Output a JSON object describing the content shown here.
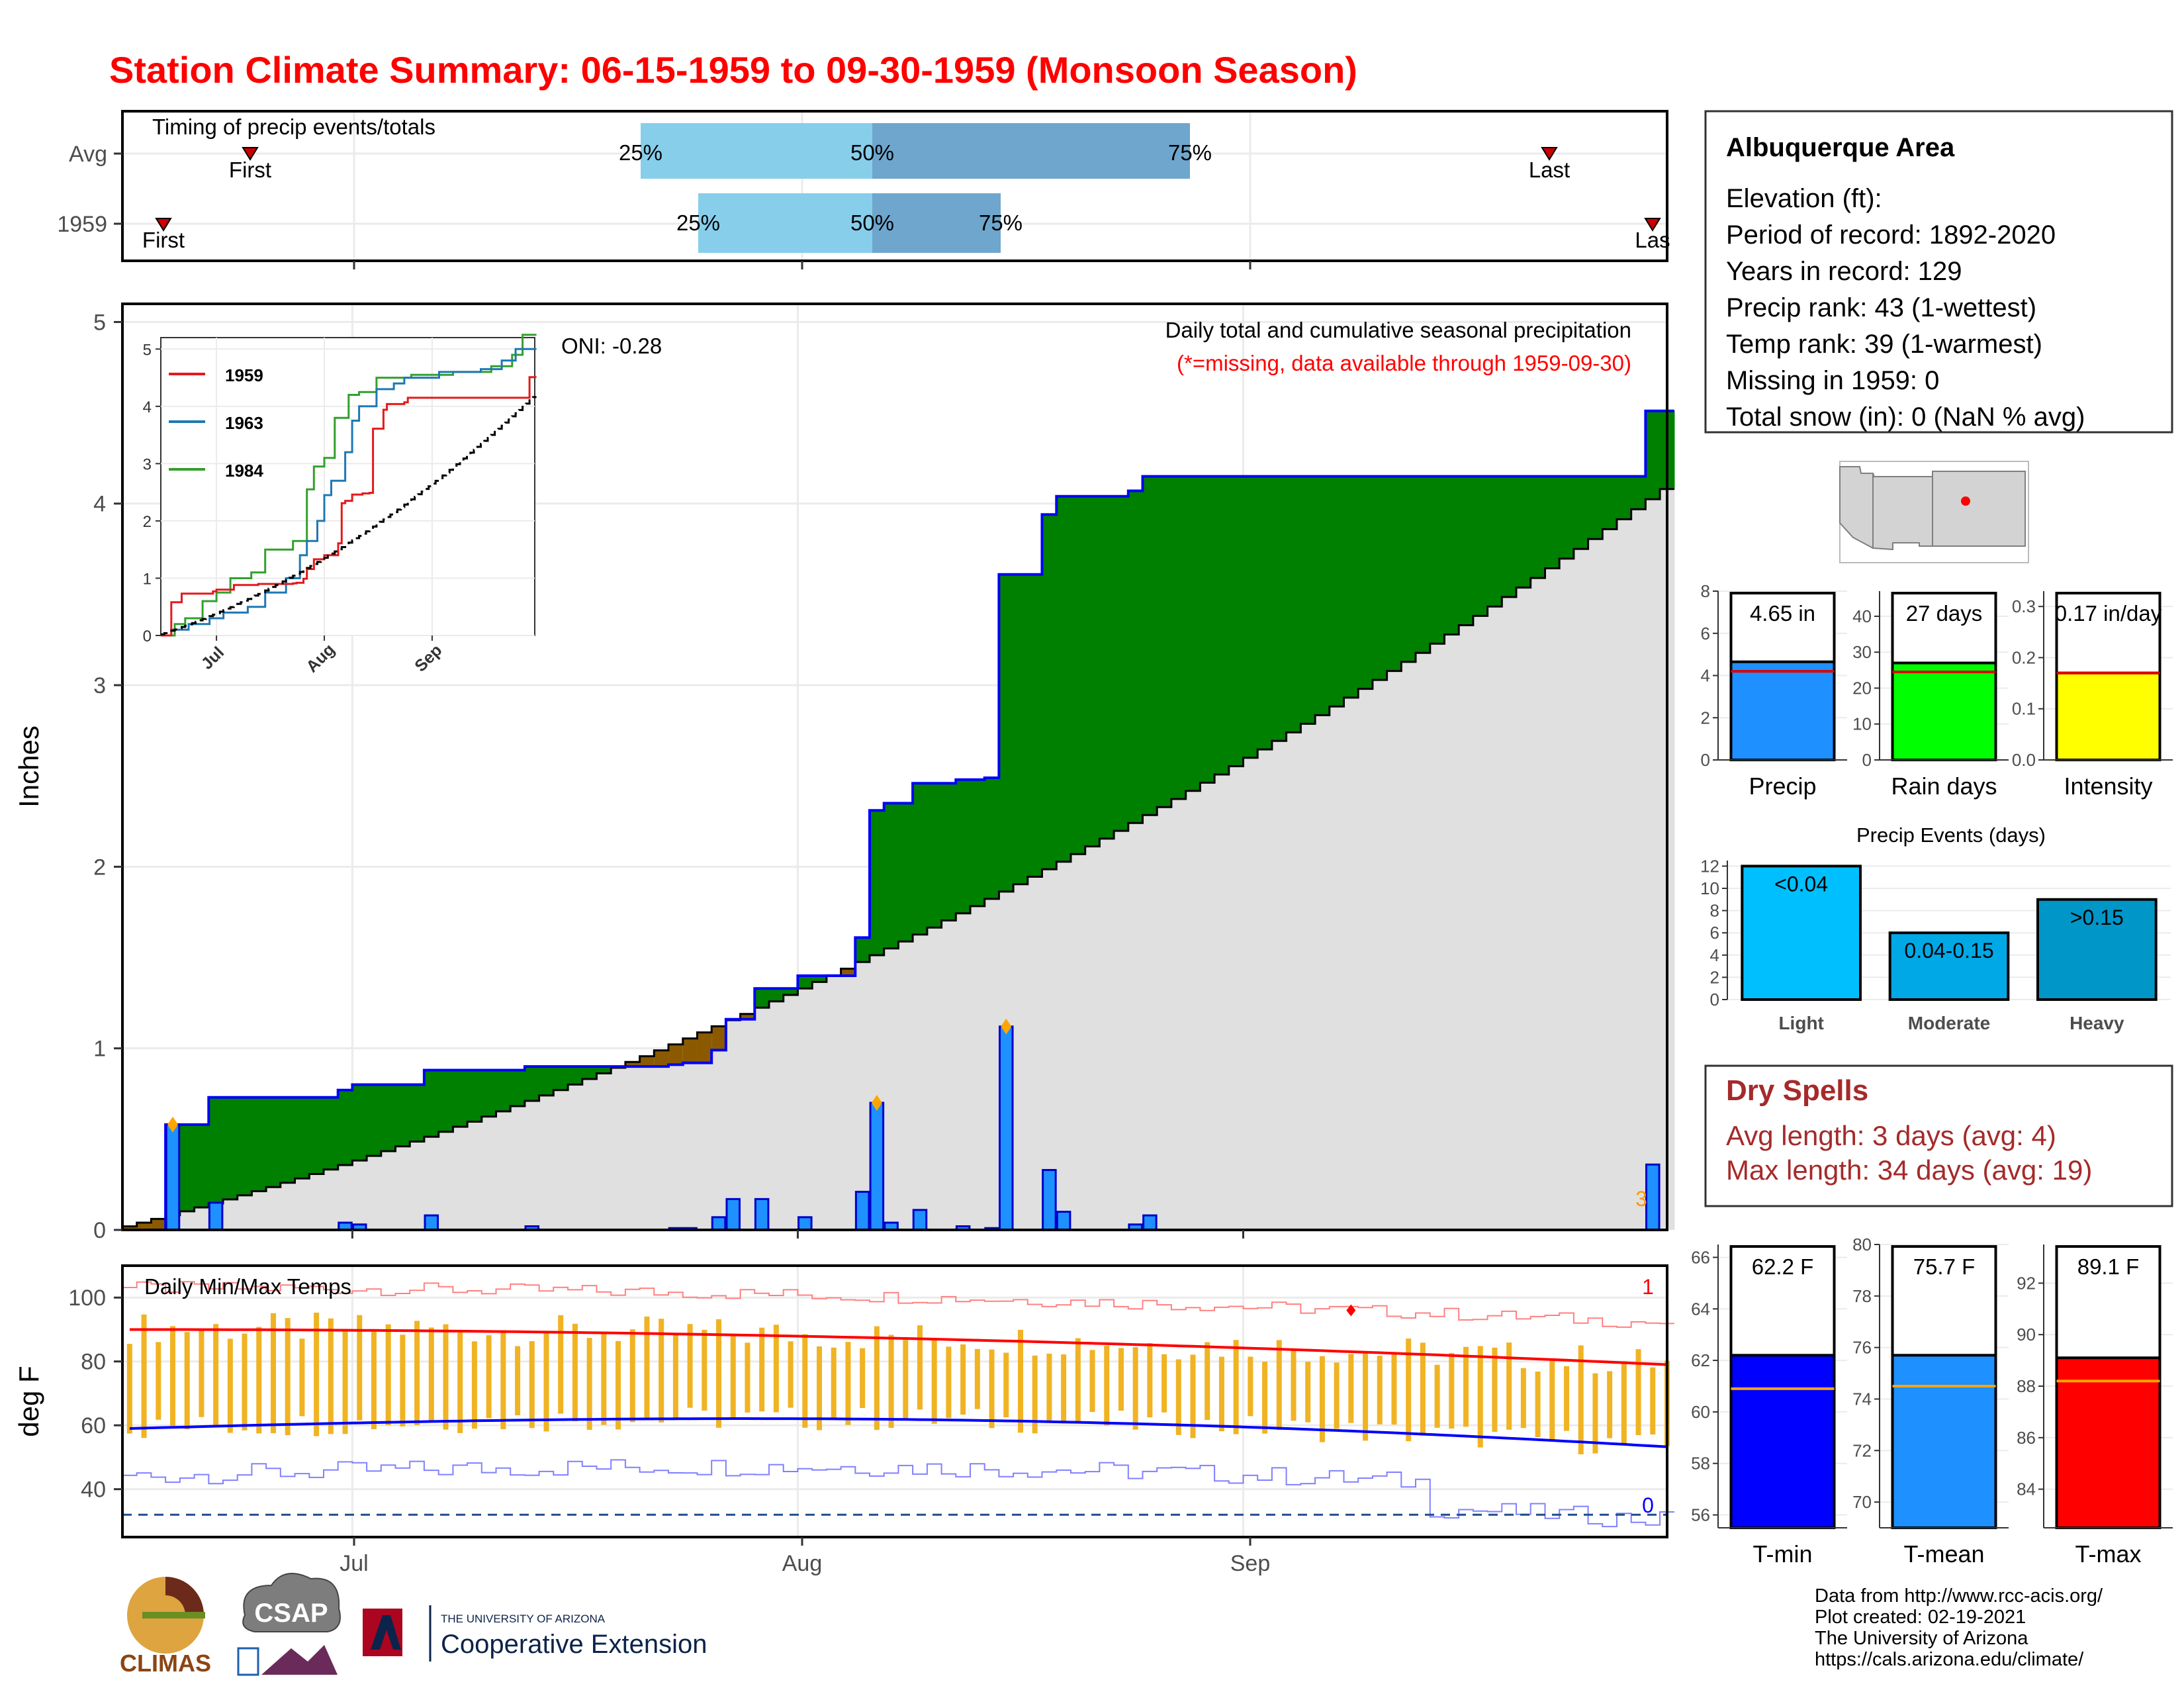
{
  "title": "Station Climate Summary: 06-15-1959 to 09-30-1959 (Monsoon Season)",
  "colors": {
    "title": "#ff0000",
    "above_normal": "#008000",
    "below_normal": "#8b5a00",
    "normal_fill": "#e0e0e0",
    "daily_bar": "#1e90ff",
    "cum_line": "#0000ff",
    "quartile_light": "#87ceeb",
    "quartile_dark": "#6ea6cd",
    "temp_bar": "#f0b323",
    "tmax_line": "#ff0000",
    "tmin_line": "#0000ff",
    "dry_spells": "#a52a2a"
  },
  "timing_panel": {
    "title": "Timing of precip events/totals",
    "rows": [
      {
        "label": "Avg",
        "first_label": "First",
        "last_label": "Last",
        "q25": "25%",
        "q50": "50%",
        "q75": "75%"
      },
      {
        "label": "1959",
        "first_label": "First",
        "last_label": "Las",
        "q25": "25%",
        "q50": "50%",
        "q75": "75%"
      }
    ]
  },
  "precip_panel": {
    "ylabel": "Inches",
    "y_ticks": [
      "0",
      "1",
      "2",
      "3",
      "4",
      "5"
    ],
    "x_ticks": [
      "Jul",
      "Aug",
      "Sep"
    ],
    "oni": "ONI: -0.28",
    "caption1": "Daily total and cumulative seasonal precipitation",
    "caption2": "(*=missing, data available through 1959-09-30)",
    "end_label": "3"
  },
  "inset": {
    "y_ticks": [
      "0",
      "1",
      "2",
      "3",
      "4",
      "5"
    ],
    "x_ticks": [
      "Jul",
      "Aug",
      "Sep"
    ],
    "legend": [
      {
        "name": "1959",
        "color": "#e31a1c"
      },
      {
        "name": "1963",
        "color": "#1f78b4"
      },
      {
        "name": "1984",
        "color": "#33a02c"
      }
    ]
  },
  "temp_panel": {
    "title": "Daily Min/Max Temps",
    "ylabel": "deg F",
    "y_ticks": [
      "40",
      "60",
      "80",
      "100"
    ],
    "x_ticks": [
      "Jul",
      "Aug",
      "Sep"
    ],
    "record_high_count": "1",
    "record_low_count": "0"
  },
  "station_info": {
    "name": "Albuquerque Area",
    "lines": [
      "Elevation (ft):",
      "Period of record: 1892-2020",
      "Years in record: 129",
      "Precip rank: 43 (1-wettest)",
      "Temp rank: 39 (1-warmest)",
      "Missing in 1959: 0",
      "Total snow (in): 0 (NaN % avg)"
    ]
  },
  "summary_bars": [
    {
      "label": "Precip",
      "value_label": "4.65 in",
      "value": 4.65,
      "avg": 4.2,
      "ymax": 8,
      "ticks": [
        "0",
        "2",
        "4",
        "6",
        "8"
      ],
      "tick_values": [
        0,
        2,
        4,
        6,
        8
      ],
      "color": "#1e90ff"
    },
    {
      "label": "Rain days",
      "value_label": "27 days",
      "value": 27,
      "avg": 24.5,
      "ymax": 47,
      "ticks": [
        "0",
        "10",
        "20",
        "30",
        "40"
      ],
      "tick_values": [
        0,
        10,
        20,
        30,
        40
      ],
      "color": "#00ff00"
    },
    {
      "label": "Intensity",
      "value_label": "0.17 in/day",
      "value": 0.17,
      "avg": 0.17,
      "ymax": 0.33,
      "ticks": [
        "0.0",
        "0.1",
        "0.2",
        "0.3"
      ],
      "tick_values": [
        0,
        0.1,
        0.2,
        0.3
      ],
      "color": "#ffff00"
    }
  ],
  "precip_events": {
    "title": "Precip Events (days)",
    "y_ticks": [
      "0",
      "2",
      "4",
      "6",
      "8",
      "10",
      "12"
    ],
    "bars": [
      {
        "label": "Light",
        "range": "<0.04",
        "value": 12,
        "color": "#00bfff"
      },
      {
        "label": "Moderate",
        "range": "0.04-0.15",
        "value": 6,
        "color": "#00a9e6"
      },
      {
        "label": "Heavy",
        "range": ">0.15",
        "value": 9,
        "color": "#0096c8"
      }
    ]
  },
  "dry_spells": {
    "title": "Dry Spells",
    "avg_line": "Avg length: 3 days (avg: 4)",
    "max_line": "Max length: 34 days (avg: 19)"
  },
  "temp_bars": [
    {
      "label": "T-min",
      "value_label": "62.2 F",
      "value": 62.2,
      "avg": 60.9,
      "ymin": 55.5,
      "ymax": 66.5,
      "ticks": [
        "56",
        "58",
        "60",
        "62",
        "64",
        "66"
      ],
      "tick_values": [
        56,
        58,
        60,
        62,
        64,
        66
      ],
      "color": "#0000ff"
    },
    {
      "label": "T-mean",
      "value_label": "75.7 F",
      "value": 75.7,
      "avg": 74.5,
      "ymin": 69,
      "ymax": 80,
      "ticks": [
        "70",
        "72",
        "74",
        "76",
        "78",
        "80"
      ],
      "tick_values": [
        70,
        72,
        74,
        76,
        78,
        80
      ],
      "color": "#1e90ff"
    },
    {
      "label": "T-max",
      "value_label": "89.1 F",
      "value": 89.1,
      "avg": 88.2,
      "ymin": 82.5,
      "ymax": 93.5,
      "ticks": [
        "84",
        "86",
        "88",
        "90",
        "92"
      ],
      "tick_values": [
        84,
        86,
        88,
        90,
        92
      ],
      "color": "#ff0000"
    }
  ],
  "footer": {
    "lines": [
      "Data from http://www.rcc-acis.org/",
      "Plot created: 02-19-2021",
      "The University of Arizona",
      "https://cals.arizona.edu/climate/"
    ],
    "logo_climas": "CLIMAS",
    "logo_csap": "CSAP",
    "ua_small": "THE UNIVERSITY OF ARIZONA",
    "ua_large": "Cooperative Extension"
  },
  "chart_data": [
    {
      "type": "bar",
      "title": "Daily total and cumulative seasonal precipitation",
      "ylabel": "Inches",
      "ylim": [
        0,
        5.1
      ],
      "x_range": [
        "1959-06-15",
        "1959-09-30"
      ],
      "daily_precip": [
        {
          "date": "1959-06-18",
          "value": 0.58
        },
        {
          "date": "1959-06-21",
          "value": 0.15
        },
        {
          "date": "1959-06-30",
          "value": 0.04
        },
        {
          "date": "1959-07-01",
          "value": 0.03
        },
        {
          "date": "1959-07-06",
          "value": 0.08
        },
        {
          "date": "1959-07-13",
          "value": 0.02
        },
        {
          "date": "1959-07-23",
          "value": 0.01
        },
        {
          "date": "1959-07-24",
          "value": 0.01
        },
        {
          "date": "1959-07-26",
          "value": 0.07
        },
        {
          "date": "1959-07-27",
          "value": 0.17
        },
        {
          "date": "1959-07-29",
          "value": 0.17
        },
        {
          "date": "1959-08-01",
          "value": 0.07
        },
        {
          "date": "1959-08-05",
          "value": 0.21
        },
        {
          "date": "1959-08-06",
          "value": 0.7
        },
        {
          "date": "1959-08-07",
          "value": 0.04
        },
        {
          "date": "1959-08-09",
          "value": 0.11
        },
        {
          "date": "1959-08-12",
          "value": 0.02
        },
        {
          "date": "1959-08-14",
          "value": 0.01
        },
        {
          "date": "1959-08-15",
          "value": 1.12
        },
        {
          "date": "1959-08-18",
          "value": 0.33
        },
        {
          "date": "1959-08-19",
          "value": 0.1
        },
        {
          "date": "1959-08-24",
          "value": 0.03
        },
        {
          "date": "1959-08-25",
          "value": 0.08
        },
        {
          "date": "1959-09-29",
          "value": 0.36
        }
      ],
      "cumulative_normal_end": 4.08
    },
    {
      "type": "line",
      "title": "",
      "series": [
        {
          "name": "1959",
          "color": "#e31a1c"
        },
        {
          "name": "1963",
          "color": "#1f78b4"
        },
        {
          "name": "1984",
          "color": "#33a02c"
        }
      ],
      "ylim": [
        0,
        5.2
      ]
    },
    {
      "type": "bar",
      "title": "Daily Min/Max Temps",
      "ylabel": "deg F",
      "ylim": [
        25,
        110
      ],
      "normal_max_start": 90,
      "normal_max_end": 79,
      "normal_min_start": 59,
      "normal_min_end": 51,
      "freeze_line": 32
    },
    {
      "type": "bar",
      "title": "Precip Events (days)",
      "categories": [
        "Light",
        "Moderate",
        "Heavy"
      ],
      "values": [
        12,
        6,
        9
      ]
    }
  ]
}
